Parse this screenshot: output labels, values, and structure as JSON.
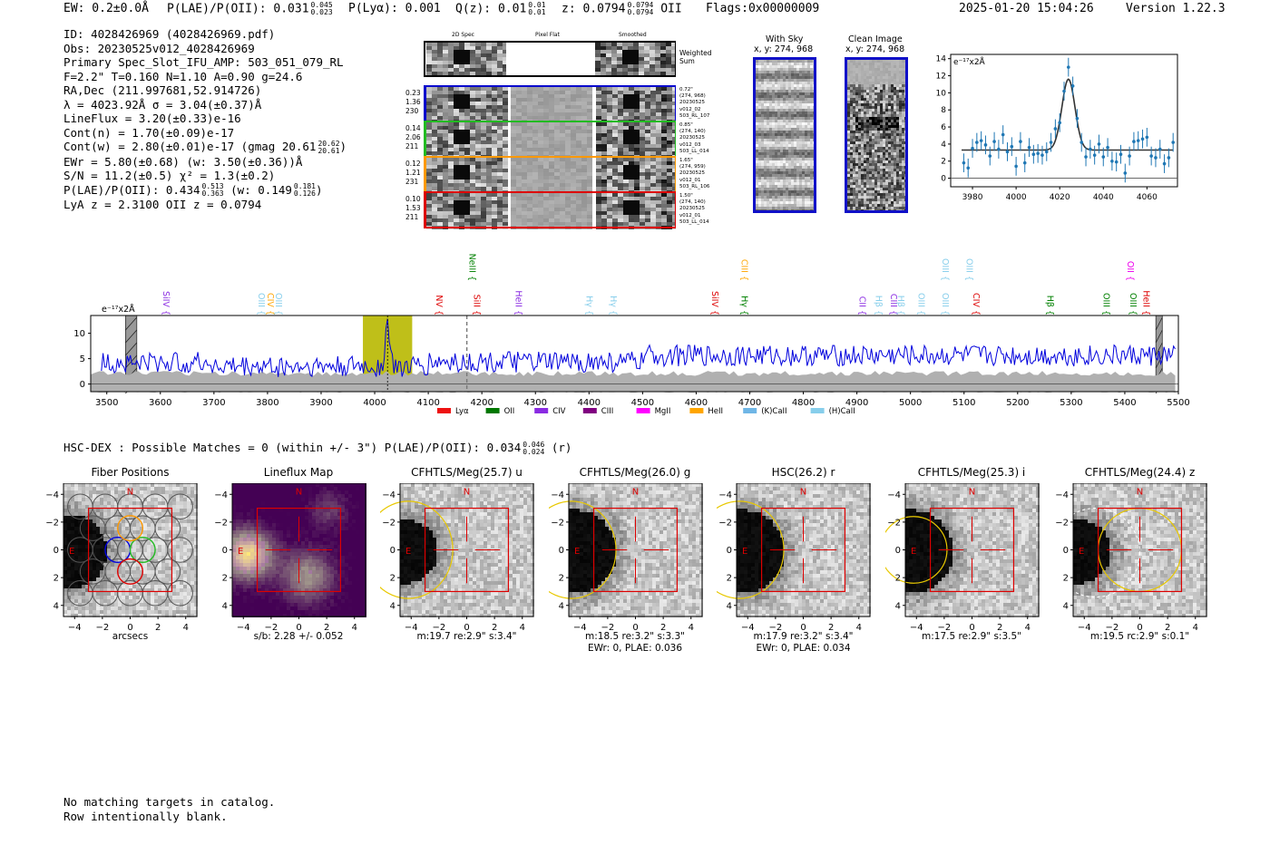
{
  "header": {
    "ew": "EW: 0.2±0.0Å",
    "plae_label": "P(LAE)/P(OII): 0.031",
    "plae_hi": "0.045",
    "plae_lo": "0.023",
    "plya": "P(Lyα): 0.001",
    "qz_label": "Q(z): 0.01",
    "qz_hi": "0.01",
    "qz_lo": "0.01",
    "z_label": "z: 0.0794",
    "z_hi": "0.0794",
    "z_lo": "0.0794",
    "z_line": "OII",
    "flags": "Flags:0x00000009",
    "timestamp": "2025-01-20 15:04:26",
    "version": "Version 1.22.3"
  },
  "info": {
    "id": "ID: 4028426969 (4028426969.pdf)",
    "obs": "Obs: 20230525v012_4028426969",
    "primary": "Primary Spec_Slot_IFU_AMP: 503_051_079_RL",
    "params": "F=2.2\"  T=0.160  N=1.10  A=0.90  g=24.6",
    "radec": "RA,Dec (211.997681,52.914726)",
    "lambda": "λ = 4023.92Å  σ = 3.04(±0.37)Å",
    "lineflux": "LineFlux = 3.20(±0.33)e-16",
    "contn": "Cont(n) = 1.70(±0.09)e-17",
    "contw": "Cont(w) = 2.80(±0.01)e-17 (gmag 20.61",
    "contw_hi": "20.62",
    "contw_lo": "20.61",
    "ewr": "EWr = 5.80(±0.68) (w: 3.50(±0.36))Å",
    "sn": "S/N = 11.2(±0.5)  χ² = 1.3(±0.2)",
    "plae": "P(LAE)/P(OII): 0.434",
    "plae_hi": "0.513",
    "plae_lo": "0.363",
    "plae_w": "(w: 0.149",
    "plae_w_hi": "0.181",
    "plae_w_lo": "0.126",
    "redshifts": "LyA z = 2.3100   OII z = 0.0794"
  },
  "cutouts": {
    "col_2d": "2D Spec",
    "col_flat": "Pixel Flat",
    "col_smooth": "Smoothed",
    "weighted": [
      "Weighted",
      "Sum"
    ],
    "rows": [
      {
        "left": [
          "0.23",
          "1.36",
          "230"
        ],
        "right": [
          "0.72\"",
          "(274, 968)",
          "20230525",
          "v012_02",
          "503_RL_107"
        ],
        "color": "#0000cc"
      },
      {
        "left": [
          "0.14",
          "2.06",
          "211"
        ],
        "right": [
          "0.85\"",
          "(274, 140)",
          "20230525",
          "v012_03",
          "503_LL_014"
        ],
        "color": "#22bb22"
      },
      {
        "left": [
          "0.12",
          "1.21",
          "231"
        ],
        "right": [
          "1.65\"",
          "(274, 959)",
          "20230525",
          "v012_01",
          "503_RL_106"
        ],
        "color": "#ff9900"
      },
      {
        "left": [
          "0.10",
          "1.53",
          "211"
        ],
        "right": [
          "1.50\"",
          "(274, 140)",
          "20230525",
          "v012_01",
          "503_LL_014"
        ],
        "color": "#dd0000"
      }
    ],
    "with_sky": "With Sky",
    "with_sky_xy": "x, y: 274, 968",
    "clean": "Clean Image",
    "clean_xy": "x, y: 274, 968"
  },
  "zoom_chart": {
    "type": "scatter",
    "ylabel": "e⁻¹⁷x2Å",
    "xlim": [
      3970,
      4074
    ],
    "ylim": [
      -1,
      14.5
    ],
    "xticks": [
      "3980",
      "4000",
      "4020",
      "4040",
      "4060"
    ],
    "yticks": [
      "0",
      "2",
      "4",
      "6",
      "8",
      "10",
      "12",
      "14"
    ],
    "x": [
      3976,
      3978,
      3980,
      3982,
      3984,
      3986,
      3988,
      3990,
      3992,
      3994,
      3996,
      3998,
      4000,
      4002,
      4004,
      4006,
      4008,
      4010,
      4012,
      4014,
      4016,
      4018,
      4020,
      4022,
      4024,
      4026,
      4028,
      4030,
      4032,
      4034,
      4036,
      4038,
      4040,
      4042,
      4044,
      4046,
      4048,
      4050,
      4052,
      4054,
      4056,
      4058,
      4060,
      4062,
      4064,
      4066,
      4068,
      4070,
      4072
    ],
    "y": [
      1.8,
      1.2,
      3.5,
      4.2,
      4.4,
      3.9,
      2.6,
      4.3,
      3.4,
      5.1,
      3.1,
      3.7,
      1.4,
      4.3,
      1.8,
      3.6,
      2.8,
      2.9,
      2.7,
      3.1,
      4.2,
      5.8,
      6.5,
      10.2,
      13.0,
      10.8,
      7.0,
      4.2,
      2.5,
      3.4,
      2.7,
      4.0,
      2.5,
      3.6,
      2.0,
      1.9,
      2.8,
      0.6,
      2.6,
      4.3,
      4.4,
      4.6,
      4.8,
      2.6,
      2.4,
      3.4,
      1.7,
      2.4,
      4.2
    ],
    "err": 1.1,
    "fit": {
      "continuum": 3.3,
      "amp": 8.3,
      "center": 4024.0,
      "sigma": 3.0
    }
  },
  "spectrum_chart": {
    "type": "line",
    "ylabel": "e⁻¹⁷x2Å",
    "xlim": [
      3470,
      5500
    ],
    "ylim": [
      -1.5,
      13.5
    ],
    "xticks": [
      "3500",
      "3600",
      "3700",
      "3800",
      "3900",
      "4000",
      "4100",
      "4200",
      "4300",
      "4400",
      "4500",
      "4600",
      "4700",
      "4800",
      "4900",
      "5000",
      "5100",
      "5200",
      "5300",
      "5400",
      "5500"
    ],
    "yticks": [
      "0",
      "5",
      "10"
    ],
    "highlight_range": [
      3978,
      4070
    ],
    "emission_center": 4024,
    "emission_peak": 12.0,
    "dashed_marker": 4172,
    "hatched_regions": [
      [
        3535,
        3556
      ],
      [
        5458,
        5470
      ]
    ],
    "lines": [
      {
        "label": "SiIV",
        "x": 3600,
        "color": "#8a2be2",
        "level": 0
      },
      {
        "label": "OIII",
        "x": 3778,
        "color": "#87ceeb",
        "level": 0
      },
      {
        "label": "CIV",
        "x": 3795,
        "color": "#ffa500",
        "level": 0
      },
      {
        "label": "OIII",
        "x": 3810,
        "color": "#87ceeb",
        "level": 0
      },
      {
        "label": "NeIII",
        "x": 4172,
        "color": "#008000",
        "level": 1
      },
      {
        "label": "NV",
        "x": 4110,
        "color": "#dd0000",
        "level": 0
      },
      {
        "label": "SiII",
        "x": 4180,
        "color": "#dd0000",
        "level": 0
      },
      {
        "label": "HeII",
        "x": 4258,
        "color": "#8a2be2",
        "level": 0
      },
      {
        "label": "Hγ",
        "x": 4390,
        "color": "#87ceeb",
        "level": 0
      },
      {
        "label": "Hγ",
        "x": 4435,
        "color": "#87ceeb",
        "level": 0
      },
      {
        "label": "SiIV",
        "x": 4625,
        "color": "#dd0000",
        "level": 0
      },
      {
        "label": "CIII",
        "x": 4680,
        "color": "#ffa500",
        "level": 1
      },
      {
        "label": "Hγ",
        "x": 4680,
        "color": "#008000",
        "level": 0
      },
      {
        "label": "CII",
        "x": 4900,
        "color": "#8a2be2",
        "level": 0
      },
      {
        "label": "Hβ",
        "x": 4930,
        "color": "#87ceeb",
        "level": 0
      },
      {
        "label": "CIII",
        "x": 4958,
        "color": "#8a2be2",
        "level": 0
      },
      {
        "label": "Hβ",
        "x": 4972,
        "color": "#87ceeb",
        "level": 0
      },
      {
        "label": "OIII",
        "x": 5010,
        "color": "#87ceeb",
        "level": 0
      },
      {
        "label": "OIII",
        "x": 5055,
        "color": "#87ceeb",
        "level": 1
      },
      {
        "label": "OIII",
        "x": 5055,
        "color": "#87ceeb",
        "level": 0
      },
      {
        "label": "OIII",
        "x": 5100,
        "color": "#87ceeb",
        "level": 1
      },
      {
        "label": "CIV",
        "x": 5112,
        "color": "#dd0000",
        "level": 0
      },
      {
        "label": "Hβ",
        "x": 5250,
        "color": "#008000",
        "level": 0
      },
      {
        "label": "OII",
        "x": 5400,
        "color": "#ee00ee",
        "level": 1
      },
      {
        "label": "OIII",
        "x": 5355,
        "color": "#008000",
        "level": 0
      },
      {
        "label": "OIII",
        "x": 5405,
        "color": "#008000",
        "level": 0
      },
      {
        "label": "HeII",
        "x": 5430,
        "color": "#dd0000",
        "level": 0
      }
    ],
    "legend": [
      {
        "label": "Lyα",
        "color": "#ee1111"
      },
      {
        "label": "OII",
        "color": "#007700"
      },
      {
        "label": "CIV",
        "color": "#8a2be2"
      },
      {
        "label": "CIII",
        "color": "#800080"
      },
      {
        "label": "MgII",
        "color": "#ff00ff"
      },
      {
        "label": "HeII",
        "color": "#ffa500"
      },
      {
        "label": "(K)CaII",
        "color": "#6fb6e6"
      },
      {
        "label": "(H)CaII",
        "color": "#87ceeb"
      }
    ]
  },
  "hsc": {
    "title": "HSC-DEX : Possible Matches = 0 (within +/- 3\")  P(LAE)/P(OII): 0.034",
    "hi": "0.046",
    "lo": "0.024",
    "band": "(r)"
  },
  "stamps": {
    "ticks": [
      "−4",
      "−2",
      "0",
      "2",
      "4"
    ],
    "north": "N",
    "east": "E",
    "panels": [
      {
        "title": "Fiber Positions",
        "caption1": "arcsecs",
        "caption2": "",
        "kind": "fiber"
      },
      {
        "title": "Lineflux Map",
        "caption1": "s/b: 2.28 +/- 0.052",
        "caption2": "",
        "kind": "lineflux"
      },
      {
        "title": "CFHTLS/Meg(25.7) u",
        "caption1": "m:19.7  re:2.9\"  s:3.4\"",
        "caption2": "",
        "kind": "u"
      },
      {
        "title": "CFHTLS/Meg(26.0) g",
        "caption1": "m:18.5  re:3.2\"  s:3.3\"",
        "caption2": "EWr: 0, PLAE: 0.036",
        "kind": "g"
      },
      {
        "title": "HSC(26.2) r",
        "caption1": "m:17.9  re:3.2\"  s:3.4\"",
        "caption2": "EWr: 0, PLAE: 0.034",
        "kind": "r"
      },
      {
        "title": "CFHTLS/Meg(25.3) i",
        "caption1": "m:17.5  re:2.9\"  s:3.5\"",
        "caption2": "",
        "kind": "i"
      },
      {
        "title": "CFHTLS/Meg(24.4) z",
        "caption1": "m:19.5  rc:2.9\"  s:0.1\"",
        "caption2": "",
        "kind": "z"
      }
    ]
  },
  "footer": {
    "line1": "No matching targets in catalog.",
    "line2": "Row intentionally blank."
  }
}
